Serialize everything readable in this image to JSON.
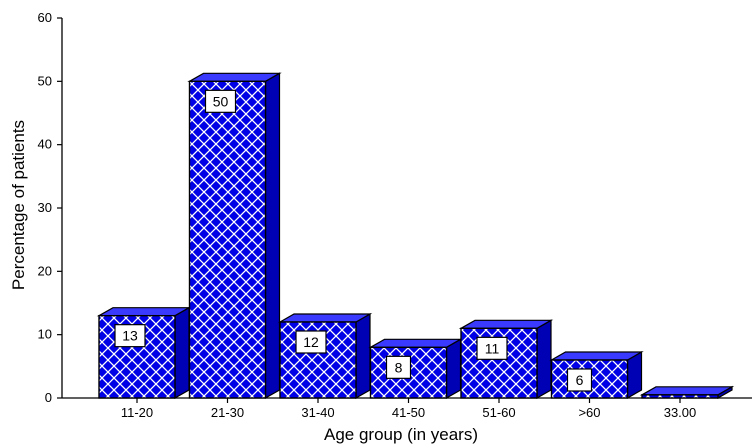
{
  "chart_data": {
    "type": "bar",
    "categories": [
      "11-20",
      "21-30",
      "31-40",
      "41-50",
      "51-60",
      ">60",
      "33.00"
    ],
    "values": [
      13,
      50,
      12,
      8,
      11,
      6,
      0.5
    ],
    "data_labels": [
      "13",
      "50",
      "12",
      "8",
      "11",
      "6",
      ""
    ],
    "xlabel": "Age group (in years)",
    "ylabel": "Percentage of patients",
    "ylim": [
      0,
      60
    ],
    "yticks": [
      0,
      10,
      20,
      30,
      40,
      50,
      60
    ],
    "grid": false,
    "style": "3d-bars-crosshatch",
    "bar_color": "#0000e6",
    "bar_side_color": "#0000b4",
    "bar_top_color": "#3a3aff"
  }
}
